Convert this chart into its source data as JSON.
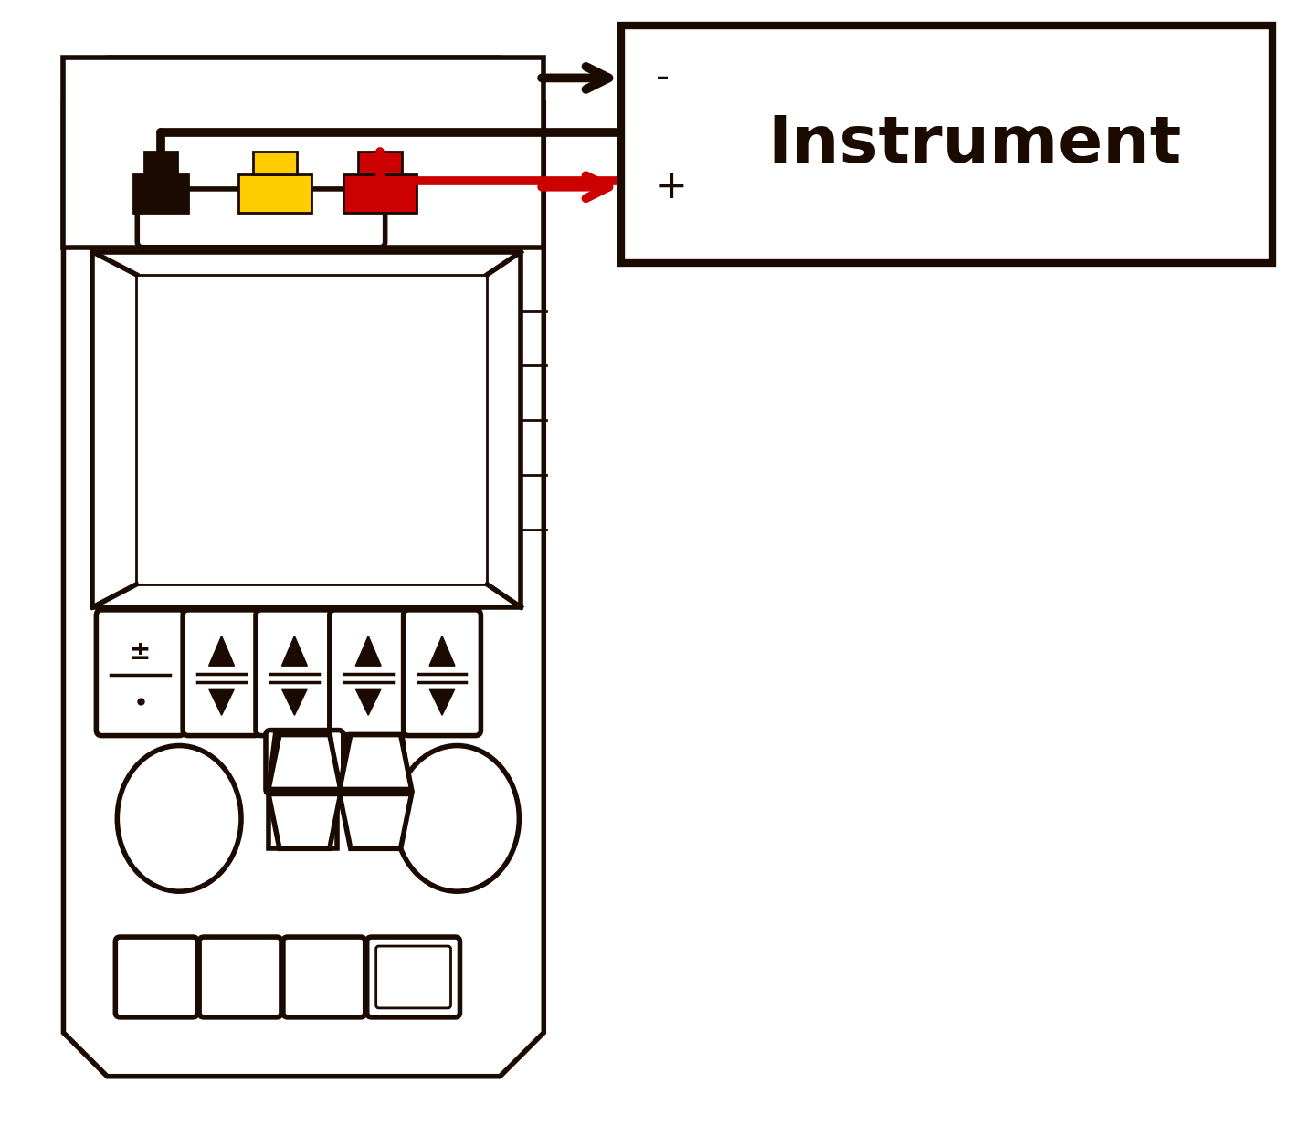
{
  "bg_color": "#ffffff",
  "line_color": "#1a0a00",
  "red_color": "#cc0000",
  "yellow_color": "#ffcc00",
  "instrument_label": "Instrument",
  "minus_label": "-",
  "plus_label": "+"
}
